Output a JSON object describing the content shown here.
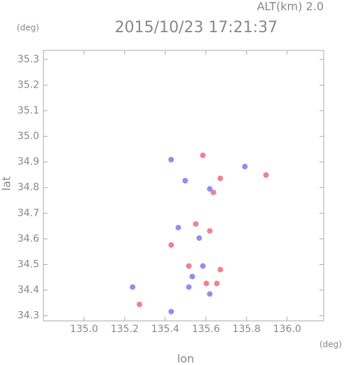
{
  "chart_data": {
    "type": "scatter",
    "title": "2015/10/23 17:21:37",
    "subtitle": "ALT(km) 2.0",
    "x_label": "lon",
    "y_label": "lat",
    "x_unit": "(deg)",
    "y_unit": "(deg)",
    "xlim": [
      134.8,
      136.18
    ],
    "ylim": [
      34.28,
      35.335
    ],
    "xticks": [
      {
        "value": 135.0,
        "label": "135.0"
      },
      {
        "value": 135.2,
        "label": "135.2"
      },
      {
        "value": 135.4,
        "label": "135.4"
      },
      {
        "value": 135.6,
        "label": "135.6"
      },
      {
        "value": 135.8,
        "label": "135.8"
      },
      {
        "value": 136.0,
        "label": "136.0"
      }
    ],
    "yticks": [
      {
        "value": 34.3,
        "label": "34.3"
      },
      {
        "value": 34.4,
        "label": "34.4"
      },
      {
        "value": 34.5,
        "label": "34.5"
      },
      {
        "value": 34.6,
        "label": "34.6"
      },
      {
        "value": 34.7,
        "label": "34.7"
      },
      {
        "value": 34.8,
        "label": "34.8"
      },
      {
        "value": 34.9,
        "label": "34.9"
      },
      {
        "value": 35.0,
        "label": "35.0"
      },
      {
        "value": 35.1,
        "label": "35.1"
      },
      {
        "value": 35.2,
        "label": "35.2"
      },
      {
        "value": 35.3,
        "label": "35.3"
      }
    ],
    "series": [
      {
        "color": "#7b7bee",
        "x": [
          135.516,
          135.429,
          135.239,
          135.498,
          135.619,
          135.792,
          135.464,
          135.567,
          135.585,
          135.533,
          135.429,
          135.619
        ],
        "values": [
          34.412,
          34.316,
          34.412,
          34.827,
          34.795,
          34.882,
          34.644,
          34.603,
          34.494,
          34.453,
          34.909,
          34.385
        ]
      },
      {
        "color": "#ee6b7b",
        "x": [
          135.273,
          135.602,
          135.654,
          135.516,
          135.619,
          135.671,
          135.637,
          135.429,
          135.896,
          135.585,
          135.55,
          135.671
        ],
        "values": [
          34.344,
          34.426,
          34.426,
          34.494,
          34.631,
          34.836,
          34.781,
          34.576,
          34.849,
          34.926,
          34.658,
          34.48
        ]
      }
    ]
  }
}
